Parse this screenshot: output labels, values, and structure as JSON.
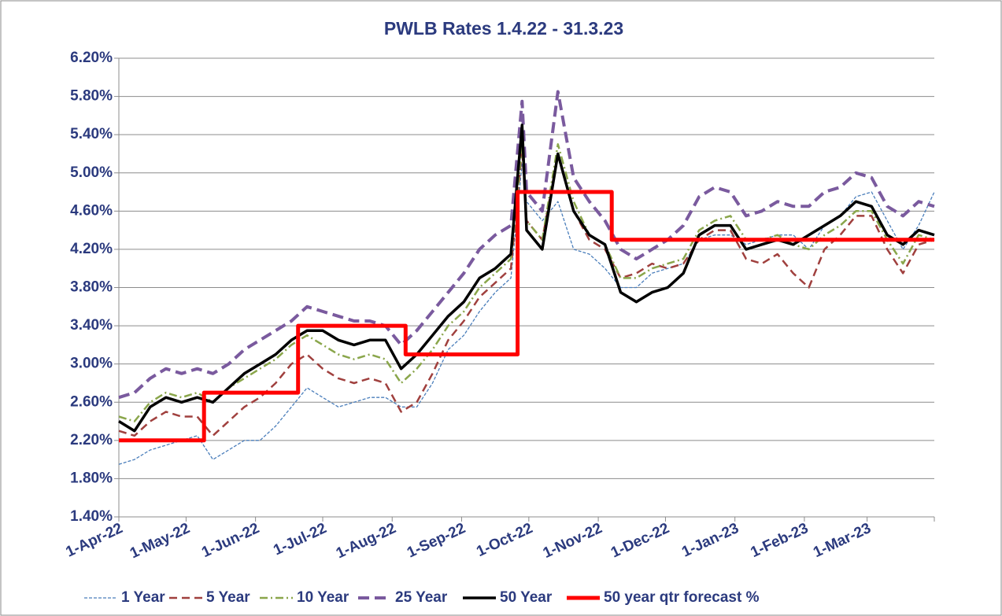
{
  "chart_data": {
    "type": "line",
    "title": "PWLB Rates 1.4.22 - 31.3.23",
    "x": [
      "2022-04-01",
      "2022-04-08",
      "2022-04-15",
      "2022-04-22",
      "2022-04-29",
      "2022-05-06",
      "2022-05-13",
      "2022-05-20",
      "2022-05-27",
      "2022-06-03",
      "2022-06-10",
      "2022-06-17",
      "2022-06-24",
      "2022-07-01",
      "2022-07-08",
      "2022-07-15",
      "2022-07-22",
      "2022-07-29",
      "2022-08-05",
      "2022-08-12",
      "2022-08-19",
      "2022-08-26",
      "2022-09-02",
      "2022-09-09",
      "2022-09-16",
      "2022-09-23",
      "2022-09-28",
      "2022-09-30",
      "2022-10-07",
      "2022-10-14",
      "2022-10-21",
      "2022-10-28",
      "2022-11-04",
      "2022-11-11",
      "2022-11-18",
      "2022-11-25",
      "2022-12-02",
      "2022-12-09",
      "2022-12-16",
      "2022-12-23",
      "2022-12-30",
      "2023-01-06",
      "2023-01-13",
      "2023-01-20",
      "2023-01-27",
      "2023-02-03",
      "2023-02-10",
      "2023-02-17",
      "2023-02-24",
      "2023-03-03",
      "2023-03-10",
      "2023-03-17",
      "2023-03-24",
      "2023-03-31"
    ],
    "xlim": [
      "2022-04-01",
      "2023-03-31"
    ],
    "xticks": [
      {
        "value": "2022-04-01",
        "label": "1-Apr-22"
      },
      {
        "value": "2022-05-01",
        "label": "1-May-22"
      },
      {
        "value": "2022-06-01",
        "label": "1-Jun-22"
      },
      {
        "value": "2022-07-01",
        "label": "1-Jul-22"
      },
      {
        "value": "2022-08-01",
        "label": "1-Aug-22"
      },
      {
        "value": "2022-09-01",
        "label": "1-Sep-22"
      },
      {
        "value": "2022-10-01",
        "label": "1-Oct-22"
      },
      {
        "value": "2022-11-01",
        "label": "1-Nov-22"
      },
      {
        "value": "2022-12-01",
        "label": "1-Dec-22"
      },
      {
        "value": "2023-01-01",
        "label": "1-Jan-23"
      },
      {
        "value": "2023-02-01",
        "label": "1-Feb-23"
      },
      {
        "value": "2023-03-01",
        "label": "1-Mar-23"
      },
      {
        "value": "2023-03-31",
        "label": ""
      }
    ],
    "ylim": [
      1.4,
      6.2
    ],
    "yticks": [
      {
        "value": 1.4,
        "label": "1.40%"
      },
      {
        "value": 1.8,
        "label": "1.80%"
      },
      {
        "value": 2.2,
        "label": "2.20%"
      },
      {
        "value": 2.6,
        "label": "2.60%"
      },
      {
        "value": 3.0,
        "label": "3.00%"
      },
      {
        "value": 3.4,
        "label": "3.40%"
      },
      {
        "value": 3.8,
        "label": "3.80%"
      },
      {
        "value": 4.2,
        "label": "4.20%"
      },
      {
        "value": 4.6,
        "label": "4.60%"
      },
      {
        "value": 5.0,
        "label": "5.00%"
      },
      {
        "value": 5.4,
        "label": "5.40%"
      },
      {
        "value": 5.8,
        "label": "5.80%"
      },
      {
        "value": 6.2,
        "label": "6.20%"
      }
    ],
    "grid": true,
    "legend": "bottom",
    "series": [
      {
        "name": "1 Year",
        "color": "#4a7ebb",
        "dash": "dotted",
        "values": [
          1.95,
          2.0,
          2.1,
          2.15,
          2.2,
          2.25,
          2.0,
          2.1,
          2.2,
          2.2,
          2.35,
          2.55,
          2.75,
          2.65,
          2.55,
          2.6,
          2.65,
          2.65,
          2.55,
          2.55,
          2.8,
          3.15,
          3.3,
          3.55,
          3.75,
          3.9,
          5.1,
          4.7,
          4.5,
          4.7,
          4.2,
          4.15,
          4.0,
          3.8,
          3.8,
          3.95,
          4.0,
          4.05,
          4.3,
          4.35,
          4.35,
          4.25,
          4.3,
          4.35,
          4.35,
          4.2,
          4.45,
          4.55,
          4.75,
          4.8,
          4.5,
          4.2,
          4.45,
          4.8
        ]
      },
      {
        "name": "5 Year",
        "color": "#a0403e",
        "dash": "dashed",
        "values": [
          2.3,
          2.25,
          2.4,
          2.5,
          2.45,
          2.45,
          2.25,
          2.4,
          2.55,
          2.65,
          2.8,
          3.0,
          3.1,
          2.95,
          2.85,
          2.8,
          2.85,
          2.8,
          2.5,
          2.6,
          2.9,
          3.25,
          3.45,
          3.7,
          3.85,
          4.0,
          5.25,
          4.5,
          4.3,
          5.2,
          4.6,
          4.3,
          4.2,
          3.9,
          3.95,
          4.05,
          4.0,
          4.05,
          4.3,
          4.4,
          4.4,
          4.1,
          4.05,
          4.15,
          3.95,
          3.8,
          4.2,
          4.35,
          4.55,
          4.55,
          4.2,
          3.95,
          4.25,
          4.3
        ]
      },
      {
        "name": "10 Year",
        "color": "#8aa64b",
        "dash": "dashdot",
        "values": [
          2.45,
          2.4,
          2.6,
          2.7,
          2.65,
          2.7,
          2.6,
          2.75,
          2.85,
          2.95,
          3.05,
          3.2,
          3.3,
          3.2,
          3.1,
          3.05,
          3.1,
          3.05,
          2.8,
          2.95,
          3.15,
          3.4,
          3.55,
          3.8,
          3.95,
          4.1,
          5.3,
          4.5,
          4.3,
          5.3,
          4.7,
          4.35,
          4.25,
          3.9,
          3.9,
          4.0,
          4.05,
          4.1,
          4.4,
          4.5,
          4.55,
          4.3,
          4.3,
          4.35,
          4.25,
          4.2,
          4.35,
          4.45,
          4.6,
          4.6,
          4.3,
          4.05,
          4.35,
          4.3
        ]
      },
      {
        "name": "25 Year",
        "color": "#7a5a9e",
        "dash": "longdash",
        "values": [
          2.65,
          2.7,
          2.85,
          2.95,
          2.9,
          2.95,
          2.9,
          3.0,
          3.15,
          3.25,
          3.35,
          3.45,
          3.6,
          3.55,
          3.5,
          3.45,
          3.45,
          3.4,
          3.2,
          3.35,
          3.55,
          3.75,
          3.95,
          4.2,
          4.35,
          4.45,
          5.75,
          4.8,
          4.6,
          5.85,
          4.95,
          4.7,
          4.5,
          4.2,
          4.1,
          4.2,
          4.3,
          4.45,
          4.75,
          4.85,
          4.8,
          4.55,
          4.6,
          4.7,
          4.65,
          4.65,
          4.8,
          4.85,
          5.0,
          4.95,
          4.65,
          4.55,
          4.7,
          4.65
        ]
      },
      {
        "name": "50 Year",
        "color": "#000000",
        "dash": "solid",
        "values": [
          2.4,
          2.3,
          2.55,
          2.65,
          2.6,
          2.65,
          2.6,
          2.75,
          2.9,
          3.0,
          3.1,
          3.25,
          3.35,
          3.35,
          3.25,
          3.2,
          3.25,
          3.25,
          2.95,
          3.1,
          3.3,
          3.5,
          3.65,
          3.9,
          4.0,
          4.15,
          5.5,
          4.4,
          4.2,
          5.2,
          4.6,
          4.35,
          4.25,
          3.75,
          3.65,
          3.75,
          3.8,
          3.95,
          4.35,
          4.45,
          4.45,
          4.2,
          4.25,
          4.3,
          4.25,
          4.35,
          4.45,
          4.55,
          4.7,
          4.65,
          4.35,
          4.25,
          4.4,
          4.35
        ]
      },
      {
        "name": "50 year qtr forecast %",
        "color": "#ff0000",
        "dash": "thick",
        "x": [
          "2022-04-01",
          "2022-05-09",
          "2022-05-09",
          "2022-06-20",
          "2022-06-20",
          "2022-08-07",
          "2022-08-07",
          "2022-09-26",
          "2022-09-26",
          "2022-11-07",
          "2022-11-07",
          "2023-03-31"
        ],
        "values": [
          2.2,
          2.2,
          2.7,
          2.7,
          3.4,
          3.4,
          3.1,
          3.1,
          4.8,
          4.8,
          4.3,
          4.3
        ]
      }
    ]
  }
}
